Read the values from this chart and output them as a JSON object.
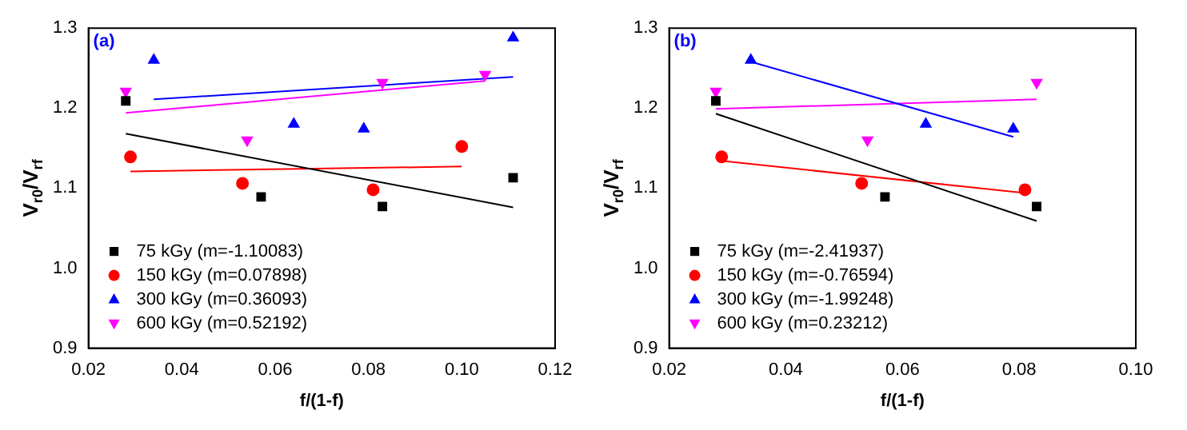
{
  "chart_data": [
    {
      "type": "scatter",
      "title": "(a)",
      "xlabel": "f/(1-f)",
      "ylabel": "V$_{r0}$/V$_{rf}$",
      "xlim": [
        0.02,
        0.12
      ],
      "xticks": [
        0.02,
        0.04,
        0.06,
        {
          "value": 0.08,
          "label": "0.08"
        },
        {
          "value": 0.1,
          "label": "0.10"
        },
        {
          "value": 0.12,
          "label": "0.12"
        }
      ],
      "ylim": [
        0.9,
        1.3
      ],
      "yticks": [
        0.9,
        {
          "value": 1.0,
          "label": "1.0"
        },
        1.1,
        1.2,
        1.3
      ],
      "grid": false,
      "legend": "bottom left",
      "series": [
        {
          "name": "75 kGy (m=-1.10083)",
          "color": "#000000",
          "marker": "square",
          "x": [
            0.028,
            0.057,
            0.083,
            0.111
          ],
          "values": [
            1.209,
            1.089,
            1.077,
            1.113
          ]
        },
        {
          "name": "150 kGy (m=0.07898)",
          "color": "#ff0000",
          "marker": "circle",
          "x": [
            0.029,
            0.053,
            0.081,
            0.1
          ],
          "values": [
            1.139,
            1.106,
            1.098,
            1.152
          ]
        },
        {
          "name": "300 kGy (m=0.36093)",
          "color": "#0000ff",
          "marker": "triangle",
          "x": [
            0.034,
            0.064,
            0.079,
            0.111
          ],
          "values": [
            1.26,
            1.18,
            1.174,
            1.288
          ]
        },
        {
          "name": "600 kGy (m=0.52192)",
          "color": "#ff00ff",
          "marker": "triangle-down",
          "x": [
            0.028,
            0.054,
            0.083,
            0.105
          ],
          "values": [
            1.221,
            1.16,
            1.232,
            1.242
          ]
        },
        {
          "type": "line",
          "color": "#000000",
          "marker": "none",
          "x": [
            0.028,
            0.111
          ],
          "values": [
            1.168,
            1.076
          ]
        },
        {
          "type": "line",
          "color": "#ff0000",
          "marker": "none",
          "x": [
            0.029,
            0.1
          ],
          "values": [
            1.121,
            1.127
          ]
        },
        {
          "type": "line",
          "color": "#0000ff",
          "marker": "none",
          "x": [
            0.034,
            0.111
          ],
          "values": [
            1.211,
            1.239
          ]
        },
        {
          "type": "line",
          "color": "#ff00ff",
          "marker": "none",
          "x": [
            0.028,
            0.105
          ],
          "values": [
            1.194,
            1.234
          ]
        }
      ]
    },
    {
      "type": "scatter",
      "title": "(b)",
      "xlabel": "f/(1-f)",
      "ylabel": "V$_{r0}$/V$_{rf}$",
      "xlim": [
        0.02,
        0.1
      ],
      "xticks": [
        0.02,
        0.04,
        0.06,
        {
          "value": 0.08,
          "label": "0.08"
        },
        {
          "value": 0.1,
          "label": "0.10"
        }
      ],
      "ylim": [
        0.9,
        1.3
      ],
      "yticks": [
        0.9,
        {
          "value": 1.0,
          "label": "1.0"
        },
        1.1,
        1.2,
        1.3
      ],
      "grid": false,
      "legend": "bottom left",
      "series": [
        {
          "name": "75 kGy (m=-2.41937)",
          "color": "#000000",
          "marker": "square",
          "x": [
            0.028,
            0.057,
            0.083
          ],
          "values": [
            1.209,
            1.089,
            1.077
          ]
        },
        {
          "name": "150 kGy (m=-0.76594)",
          "color": "#ff0000",
          "marker": "circle",
          "x": [
            0.029,
            0.053,
            0.081
          ],
          "values": [
            1.139,
            1.106,
            1.098
          ]
        },
        {
          "name": "300 kGy (m=-1.99248)",
          "color": "#0000ff",
          "marker": "triangle",
          "x": [
            0.034,
            0.064,
            0.079
          ],
          "values": [
            1.26,
            1.18,
            1.174
          ]
        },
        {
          "name": "600 kGy (m=0.23212)",
          "color": "#ff00ff",
          "marker": "triangle-down",
          "x": [
            0.028,
            0.054,
            0.083
          ],
          "values": [
            1.221,
            1.16,
            1.232
          ]
        },
        {
          "type": "line",
          "color": "#000000",
          "marker": "none",
          "x": [
            0.028,
            0.083
          ],
          "values": [
            1.193,
            1.059
          ]
        },
        {
          "type": "line",
          "color": "#ff0000",
          "marker": "none",
          "x": [
            0.029,
            0.081
          ],
          "values": [
            1.134,
            1.094
          ]
        },
        {
          "type": "line",
          "color": "#0000ff",
          "marker": "none",
          "x": [
            0.034,
            0.079
          ],
          "values": [
            1.258,
            1.164
          ]
        },
        {
          "type": "line",
          "color": "#ff00ff",
          "marker": "none",
          "x": [
            0.028,
            0.083
          ],
          "values": [
            1.199,
            1.211
          ]
        }
      ]
    }
  ]
}
